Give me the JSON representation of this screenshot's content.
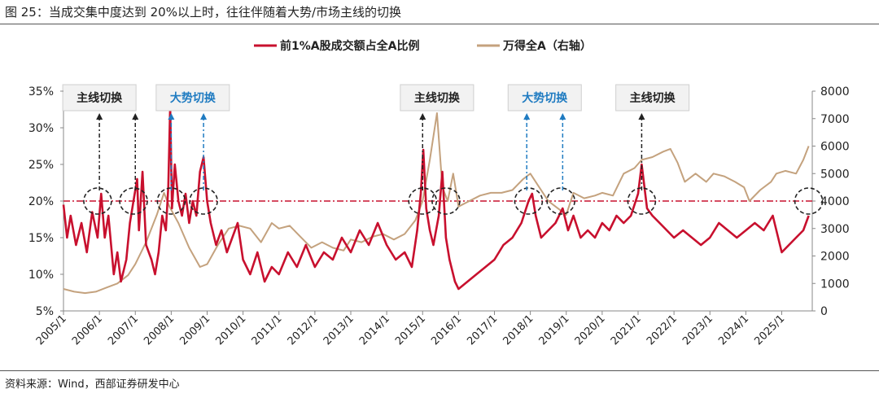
{
  "title": "图 25：当成交集中度达到 20%以上时，往往伴随着大势/市场主线的切换",
  "source": "资料来源：Wind，西部证券研发中心",
  "colors": {
    "series_share": "#c8102e",
    "series_index": "#c4a27e",
    "ref_line": "#c8102e",
    "main_label": "#222222",
    "trend_label": "#1f7bc1"
  },
  "chart_data": {
    "type": "line",
    "x_ticks": [
      "2005/1",
      "2006/1",
      "2007/1",
      "2008/1",
      "2009/1",
      "2010/1",
      "2011/1",
      "2012/1",
      "2013/1",
      "2014/1",
      "2015/1",
      "2016/1",
      "2017/1",
      "2018/1",
      "2019/1",
      "2020/1",
      "2021/1",
      "2022/1",
      "2023/1",
      "2024/1",
      "2025/1"
    ],
    "y_left": {
      "ticks": [
        "5%",
        "10%",
        "15%",
        "20%",
        "25%",
        "30%",
        "35%"
      ],
      "range": [
        5,
        35
      ]
    },
    "y_right": {
      "ticks": [
        "0",
        "1000",
        "2000",
        "3000",
        "4000",
        "5000",
        "6000",
        "7000",
        "8000"
      ],
      "range": [
        0,
        8000
      ]
    },
    "reference_line": {
      "axis": "left",
      "value": 20
    },
    "series": [
      {
        "name": "前1%A股成交额占全A比例",
        "axis": "left",
        "points": [
          [
            2005.0,
            19.5
          ],
          [
            2005.1,
            15
          ],
          [
            2005.2,
            18
          ],
          [
            2005.35,
            14
          ],
          [
            2005.5,
            17
          ],
          [
            2005.65,
            13
          ],
          [
            2005.8,
            18.5
          ],
          [
            2005.95,
            15
          ],
          [
            2006.05,
            21
          ],
          [
            2006.15,
            15
          ],
          [
            2006.25,
            18
          ],
          [
            2006.4,
            10
          ],
          [
            2006.5,
            13
          ],
          [
            2006.6,
            9
          ],
          [
            2006.75,
            12
          ],
          [
            2006.85,
            17
          ],
          [
            2006.95,
            20
          ],
          [
            2007.05,
            23
          ],
          [
            2007.1,
            16
          ],
          [
            2007.2,
            24
          ],
          [
            2007.3,
            14
          ],
          [
            2007.45,
            12
          ],
          [
            2007.55,
            10
          ],
          [
            2007.65,
            13
          ],
          [
            2007.75,
            18
          ],
          [
            2007.85,
            16
          ],
          [
            2007.92,
            22
          ],
          [
            2007.97,
            33
          ],
          [
            2008.02,
            19
          ],
          [
            2008.1,
            25
          ],
          [
            2008.2,
            20
          ],
          [
            2008.3,
            18
          ],
          [
            2008.4,
            21
          ],
          [
            2008.5,
            17
          ],
          [
            2008.6,
            20
          ],
          [
            2008.7,
            18
          ],
          [
            2008.8,
            24
          ],
          [
            2008.9,
            26
          ],
          [
            2009.0,
            20
          ],
          [
            2009.1,
            17
          ],
          [
            2009.25,
            14
          ],
          [
            2009.4,
            16
          ],
          [
            2009.55,
            13
          ],
          [
            2009.7,
            15
          ],
          [
            2009.85,
            17
          ],
          [
            2010.0,
            12
          ],
          [
            2010.2,
            10
          ],
          [
            2010.4,
            13
          ],
          [
            2010.6,
            9
          ],
          [
            2010.8,
            11
          ],
          [
            2011.0,
            10
          ],
          [
            2011.25,
            13
          ],
          [
            2011.5,
            11
          ],
          [
            2011.75,
            14
          ],
          [
            2012.0,
            11
          ],
          [
            2012.25,
            13
          ],
          [
            2012.5,
            12
          ],
          [
            2012.75,
            15
          ],
          [
            2013.0,
            13
          ],
          [
            2013.25,
            16
          ],
          [
            2013.5,
            14
          ],
          [
            2013.75,
            17
          ],
          [
            2014.0,
            14
          ],
          [
            2014.25,
            12
          ],
          [
            2014.5,
            13
          ],
          [
            2014.7,
            11
          ],
          [
            2014.85,
            16
          ],
          [
            2014.95,
            21
          ],
          [
            2015.02,
            27
          ],
          [
            2015.1,
            19
          ],
          [
            2015.2,
            16
          ],
          [
            2015.3,
            14
          ],
          [
            2015.45,
            18
          ],
          [
            2015.55,
            24
          ],
          [
            2015.65,
            15
          ],
          [
            2015.75,
            12
          ],
          [
            2015.9,
            9
          ],
          [
            2016.0,
            8
          ],
          [
            2016.25,
            9
          ],
          [
            2016.5,
            10
          ],
          [
            2016.75,
            11
          ],
          [
            2017.0,
            12
          ],
          [
            2017.25,
            14
          ],
          [
            2017.5,
            15
          ],
          [
            2017.75,
            17
          ],
          [
            2017.95,
            20
          ],
          [
            2018.05,
            21
          ],
          [
            2018.15,
            18
          ],
          [
            2018.3,
            15
          ],
          [
            2018.5,
            16
          ],
          [
            2018.7,
            17
          ],
          [
            2018.9,
            19
          ],
          [
            2019.05,
            16
          ],
          [
            2019.2,
            18
          ],
          [
            2019.4,
            15
          ],
          [
            2019.6,
            16
          ],
          [
            2019.8,
            15
          ],
          [
            2020.0,
            17
          ],
          [
            2020.2,
            16
          ],
          [
            2020.4,
            18
          ],
          [
            2020.6,
            17
          ],
          [
            2020.8,
            18
          ],
          [
            2021.0,
            21
          ],
          [
            2021.1,
            25
          ],
          [
            2021.25,
            19
          ],
          [
            2021.4,
            18
          ],
          [
            2021.6,
            17
          ],
          [
            2021.8,
            16
          ],
          [
            2022.0,
            15
          ],
          [
            2022.25,
            16
          ],
          [
            2022.5,
            15
          ],
          [
            2022.75,
            14
          ],
          [
            2023.0,
            15
          ],
          [
            2023.25,
            17
          ],
          [
            2023.5,
            16
          ],
          [
            2023.75,
            15
          ],
          [
            2024.0,
            16
          ],
          [
            2024.25,
            17
          ],
          [
            2024.5,
            16
          ],
          [
            2024.75,
            18
          ],
          [
            2025.0,
            13
          ],
          [
            2025.2,
            14
          ],
          [
            2025.4,
            15
          ],
          [
            2025.6,
            16
          ],
          [
            2025.75,
            18
          ]
        ]
      },
      {
        "name": "万得全A（右轴）",
        "axis": "right",
        "points": [
          [
            2005.0,
            800
          ],
          [
            2005.3,
            700
          ],
          [
            2005.6,
            650
          ],
          [
            2005.9,
            700
          ],
          [
            2006.2,
            850
          ],
          [
            2006.5,
            1000
          ],
          [
            2006.8,
            1300
          ],
          [
            2007.0,
            1700
          ],
          [
            2007.3,
            2500
          ],
          [
            2007.6,
            3500
          ],
          [
            2007.8,
            4300
          ],
          [
            2007.95,
            3800
          ],
          [
            2008.2,
            3200
          ],
          [
            2008.5,
            2300
          ],
          [
            2008.8,
            1600
          ],
          [
            2009.0,
            1700
          ],
          [
            2009.3,
            2400
          ],
          [
            2009.6,
            3000
          ],
          [
            2009.9,
            3100
          ],
          [
            2010.2,
            3000
          ],
          [
            2010.5,
            2500
          ],
          [
            2010.8,
            3200
          ],
          [
            2011.0,
            3000
          ],
          [
            2011.3,
            3100
          ],
          [
            2011.6,
            2700
          ],
          [
            2011.9,
            2300
          ],
          [
            2012.2,
            2500
          ],
          [
            2012.5,
            2300
          ],
          [
            2012.8,
            2200
          ],
          [
            2013.0,
            2600
          ],
          [
            2013.3,
            2500
          ],
          [
            2013.6,
            2700
          ],
          [
            2013.9,
            2800
          ],
          [
            2014.2,
            2600
          ],
          [
            2014.5,
            2800
          ],
          [
            2014.8,
            3300
          ],
          [
            2015.0,
            4000
          ],
          [
            2015.2,
            5500
          ],
          [
            2015.4,
            7200
          ],
          [
            2015.55,
            4500
          ],
          [
            2015.7,
            4000
          ],
          [
            2015.85,
            5000
          ],
          [
            2016.0,
            3800
          ],
          [
            2016.3,
            4000
          ],
          [
            2016.6,
            4200
          ],
          [
            2016.9,
            4300
          ],
          [
            2017.2,
            4300
          ],
          [
            2017.5,
            4400
          ],
          [
            2017.8,
            4800
          ],
          [
            2018.0,
            5000
          ],
          [
            2018.2,
            4600
          ],
          [
            2018.5,
            4000
          ],
          [
            2018.8,
            3700
          ],
          [
            2019.0,
            3500
          ],
          [
            2019.2,
            4300
          ],
          [
            2019.5,
            4100
          ],
          [
            2019.8,
            4200
          ],
          [
            2020.0,
            4300
          ],
          [
            2020.3,
            4200
          ],
          [
            2020.6,
            5000
          ],
          [
            2020.9,
            5200
          ],
          [
            2021.1,
            5500
          ],
          [
            2021.4,
            5600
          ],
          [
            2021.7,
            5800
          ],
          [
            2021.9,
            5900
          ],
          [
            2022.1,
            5400
          ],
          [
            2022.3,
            4700
          ],
          [
            2022.6,
            5000
          ],
          [
            2022.9,
            4700
          ],
          [
            2023.1,
            5000
          ],
          [
            2023.4,
            4900
          ],
          [
            2023.7,
            4700
          ],
          [
            2023.95,
            4500
          ],
          [
            2024.1,
            4000
          ],
          [
            2024.4,
            4400
          ],
          [
            2024.7,
            4700
          ],
          [
            2024.85,
            5000
          ],
          [
            2025.1,
            5100
          ],
          [
            2025.4,
            5000
          ],
          [
            2025.6,
            5500
          ],
          [
            2025.75,
            6000
          ]
        ]
      }
    ],
    "annotations": [
      {
        "label": "主线切换",
        "kind": "main",
        "box_x": 2006.0,
        "arrows": [
          2006.0,
          2007.0
        ]
      },
      {
        "label": "大势切换",
        "kind": "trend",
        "box_x": 2008.6,
        "arrows": [
          2008.0,
          2008.9
        ]
      },
      {
        "label": "主线切换",
        "kind": "main",
        "box_x": 2015.4,
        "arrows": [
          2015.0
        ]
      },
      {
        "label": "大势切换",
        "kind": "trend",
        "box_x": 2018.4,
        "arrows": [
          2017.9,
          2018.9
        ]
      },
      {
        "label": "主线切换",
        "kind": "main",
        "box_x": 2021.4,
        "arrows": [
          2021.1
        ]
      }
    ],
    "circles": [
      2005.95,
      2006.95,
      2008.0,
      2008.9,
      2015.0,
      2015.65,
      2017.95,
      2018.85,
      2021.1,
      2025.75
    ]
  }
}
